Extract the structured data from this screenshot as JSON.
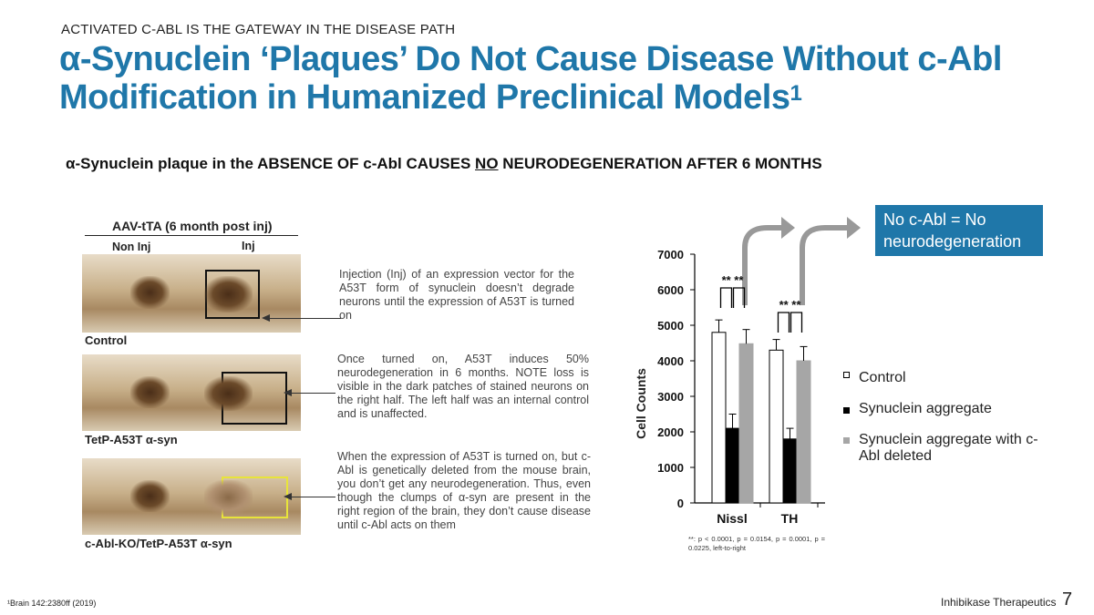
{
  "header": {
    "kicker": "ACTIVATED C-ABL IS THE GATEWAY IN THE DISEASE PATH",
    "title_line1": "α-Synuclein ‘Plaques’ Do Not Cause Disease Without c-Abl",
    "title_line2": "Modification in Humanized Preclinical Models",
    "title_sup": "1"
  },
  "subtitle": {
    "part1": "α-Synuclein plaque in the ABSENCE OF c-Abl CAUSES ",
    "underlined": "NO",
    "part2": " NEURODEGENERATION AFTER 6 MONTHS"
  },
  "callout": {
    "text": "No c-Abl = No neurodegeneration"
  },
  "figure": {
    "heading": "AAV-tTA (6 month post inj)",
    "col_noninj": "Non Inj",
    "col_inj": "Inj",
    "panels": [
      {
        "label": "Control"
      },
      {
        "label": "TetP-A53T α-syn"
      },
      {
        "label": "c-Abl-KO/TetP-A53T α-syn"
      }
    ]
  },
  "descriptions": [
    "Injection (Inj) of an expression vector for the A53T form of synuclein doesn’t degrade neurons until the expression of A53T is turned on",
    "Once turned on, A53T induces 50% neurodegeneration in 6 months.",
    "NOTE loss is visible in the dark patches of stained neurons on the right half. The left half was an internal control and is unaffected.",
    "When the expression of A53T is turned on, but c-Abl is genetically deleted from the mouse brain, you don’t get any neurodegeneration.",
    "Thus, even though the clumps of α-syn are present in the right region of the brain, they don’t cause disease until c-Abl acts on them"
  ],
  "chart_data": {
    "type": "bar",
    "categories": [
      "Nissl",
      "TH"
    ],
    "ylabel": "Cell Counts",
    "ylim": [
      0,
      7000
    ],
    "yticks": [
      0,
      1000,
      2000,
      3000,
      4000,
      5000,
      6000,
      7000
    ],
    "series": [
      {
        "name": "Control",
        "values": [
          4800,
          4300
        ],
        "errors": [
          350,
          300
        ],
        "color": "#ffffff",
        "stroke": "#000000"
      },
      {
        "name": "Synuclein aggregate",
        "values": [
          2100,
          1800
        ],
        "errors": [
          400,
          300
        ],
        "color": "#000000",
        "stroke": "#000000"
      },
      {
        "name": "Synuclein aggregate with c-Abl deleted",
        "values": [
          4480,
          4000
        ],
        "errors": [
          400,
          400
        ],
        "color": "#a6a6a6",
        "stroke": "#a6a6a6"
      }
    ],
    "significance": [
      "** **",
      "** **"
    ],
    "footnote": "**: p < 0.0001, p = 0.0154, p = 0.0001, p = 0.0225, left-to-right"
  },
  "footer": {
    "reference": "¹Brain 142:2380ff (2019)",
    "brand": "Inhibikase Therapeutics",
    "page": "7"
  }
}
